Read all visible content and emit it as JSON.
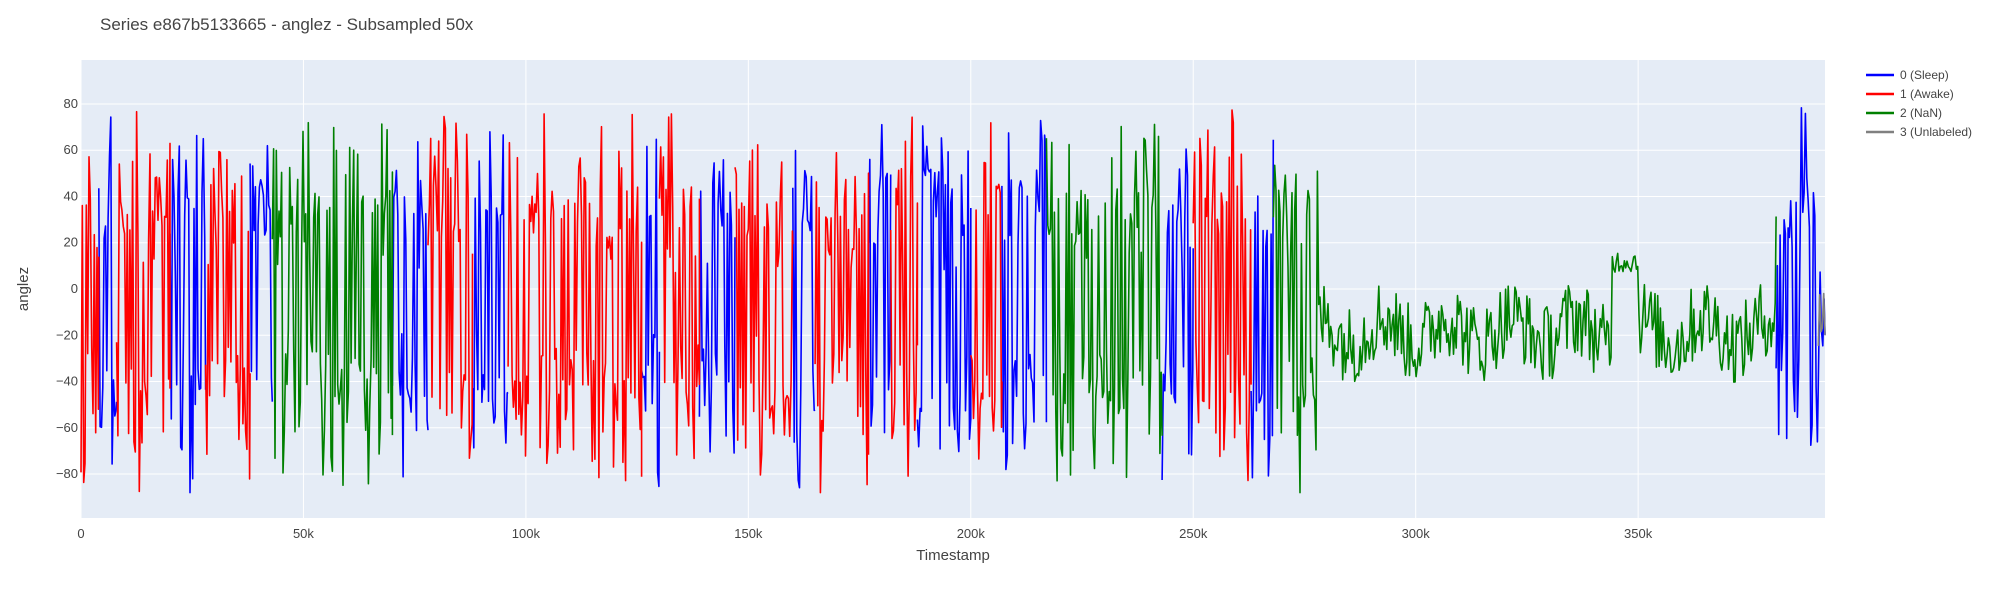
{
  "chart_data": {
    "type": "line",
    "title": "Series e867b5133665 - anglez - Subsampled 50x",
    "xlabel": "Timestamp",
    "ylabel": "anglez",
    "xlim": [
      0,
      392000
    ],
    "ylim": [
      -99,
      99
    ],
    "x_ticks": [
      {
        "value": 0,
        "label": "0"
      },
      {
        "value": 50000,
        "label": "50k"
      },
      {
        "value": 100000,
        "label": "100k"
      },
      {
        "value": 150000,
        "label": "150k"
      },
      {
        "value": 200000,
        "label": "200k"
      },
      {
        "value": 250000,
        "label": "250k"
      },
      {
        "value": 300000,
        "label": "300k"
      },
      {
        "value": 350000,
        "label": "350k"
      }
    ],
    "y_ticks": [
      {
        "value": -80,
        "label": "−80"
      },
      {
        "value": -60,
        "label": "−60"
      },
      {
        "value": -40,
        "label": "−40"
      },
      {
        "value": -20,
        "label": "−20"
      },
      {
        "value": 0,
        "label": "0"
      },
      {
        "value": 20,
        "label": "20"
      },
      {
        "value": 40,
        "label": "40"
      },
      {
        "value": 60,
        "label": "60"
      },
      {
        "value": 80,
        "label": "80"
      }
    ],
    "grid": true,
    "legend_position": "top-right",
    "plot_background": "#e5ecf6",
    "series": [
      {
        "name": "0 (Sleep)",
        "color": "#0000ff",
        "segments": [
          [
            4000,
            8000
          ],
          [
            20000,
            28000
          ],
          [
            38000,
            43000
          ],
          [
            70000,
            78000
          ],
          [
            88000,
            96000
          ],
          [
            126000,
            130000
          ],
          [
            139000,
            147000
          ],
          [
            160000,
            165000
          ],
          [
            177000,
            182000
          ],
          [
            188000,
            200000
          ],
          [
            207000,
            217000
          ],
          [
            243000,
            250000
          ],
          [
            263000,
            268000
          ],
          [
            381000,
            392000
          ]
        ]
      },
      {
        "name": "1 (Awake)",
        "color": "#ff0000",
        "segments": [
          [
            0,
            4000
          ],
          [
            8000,
            20000
          ],
          [
            28000,
            38000
          ],
          [
            78000,
            88000
          ],
          [
            96000,
            126000
          ],
          [
            130000,
            139000
          ],
          [
            147000,
            160000
          ],
          [
            165000,
            177000
          ],
          [
            182000,
            188000
          ],
          [
            200000,
            207000
          ],
          [
            250000,
            263000
          ]
        ]
      },
      {
        "name": "2 (NaN)",
        "color": "#008000",
        "segments": [
          [
            43000,
            70000
          ],
          [
            217000,
            243000
          ],
          [
            268000,
            381000
          ]
        ]
      },
      {
        "name": "3 (Unlabeled)",
        "color": "#808080",
        "segments": [
          [
            390500,
            392000
          ]
        ]
      }
    ]
  }
}
